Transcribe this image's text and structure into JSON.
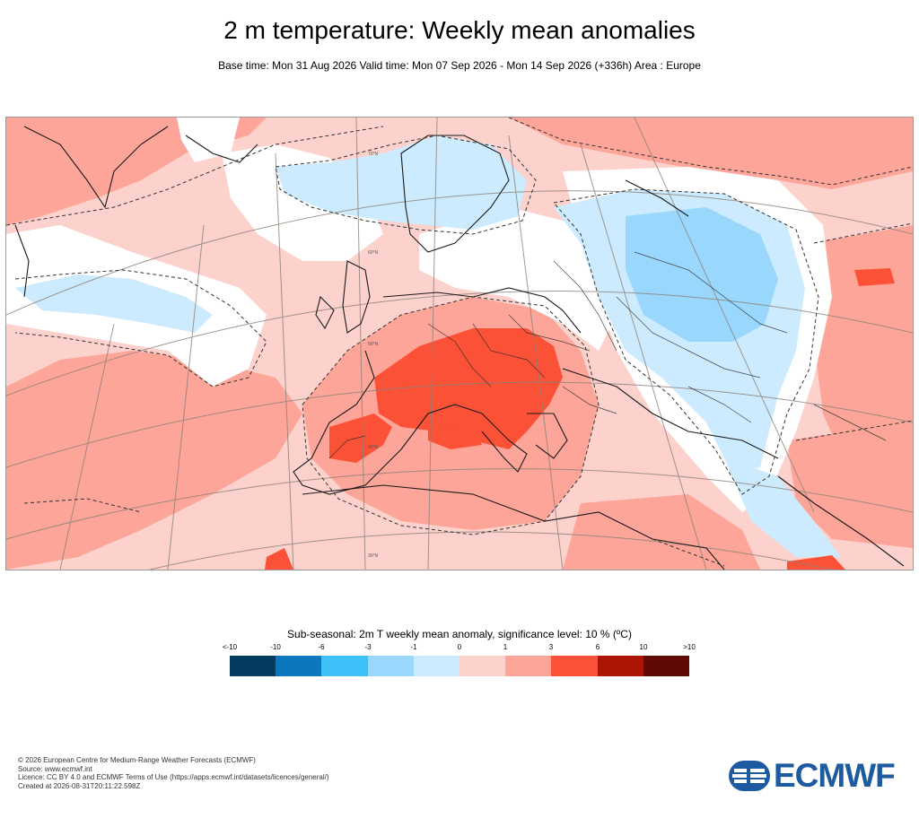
{
  "header": {
    "title": "2 m temperature: Weekly mean anomalies",
    "subtitle": "Base time: Mon 31 Aug 2026 Valid time: Mon 07 Sep 2026 - Mon 14 Sep 2026 (+336h) Area : Europe"
  },
  "map": {
    "lat_labels": [
      "70°N",
      "60°N",
      "50°N",
      "40°N",
      "30°N"
    ],
    "anomaly_colors": {
      "weak_warm": "#fdd2cd",
      "moderate_warm": "#fca598",
      "strong_warm": "#fb5136",
      "weak_cold": "#cdebfe",
      "moderate_cold": "#99d7fc",
      "strong_cold": "#3ec0f9",
      "not_significant": "#ffffff"
    }
  },
  "legend": {
    "title": "Sub-seasonal: 2m T weekly mean anomaly, significance level: 10 % (ºC)",
    "ticks": [
      "<-10",
      "-10",
      "-6",
      "-3",
      "-1",
      "0",
      "1",
      "3",
      "6",
      "10",
      ">10"
    ],
    "colors": [
      "#053b5f",
      "#0a77be",
      "#3ec0f9",
      "#99d7fc",
      "#cdebfe",
      "#fdd2cd",
      "#fca598",
      "#fb5136",
      "#ac1504",
      "#5f0a02"
    ]
  },
  "footer": {
    "copyright": "© 2026 European Centre for Medium-Range Weather Forecasts (ECMWF)",
    "source": "Source: www.ecmwf.int",
    "licence": "Licence: CC BY 4.0 and ECMWF Terms of Use (https://apps.ecmwf.int/datasets/licences/general/)",
    "created": "Created at 2026-08-31T20:11:22.598Z"
  },
  "logo": {
    "text": "ECMWF",
    "color": "#1d5aa0"
  }
}
